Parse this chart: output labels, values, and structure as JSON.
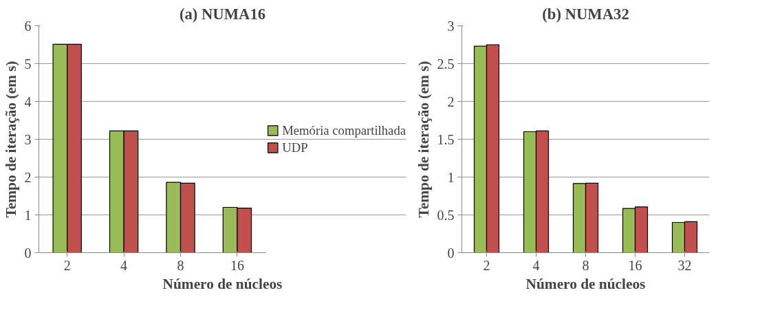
{
  "chart_data": [
    {
      "type": "bar",
      "title": "(a) NUMA16",
      "xlabel": "Número de núcleos",
      "ylabel": "Tempo de iteração (em s)",
      "categories": [
        "2",
        "4",
        "8",
        "16"
      ],
      "ylim": [
        0,
        6
      ],
      "yticks": [
        0,
        1,
        2,
        3,
        4,
        5,
        6
      ],
      "grid": "y",
      "legend": "right",
      "series": [
        {
          "name": "Memória compartilhada",
          "color": "#9bbb59",
          "values": [
            5.51,
            3.22,
            1.86,
            1.2
          ]
        },
        {
          "name": "UDP",
          "color": "#c0504d",
          "values": [
            5.51,
            3.22,
            1.84,
            1.18
          ]
        }
      ]
    },
    {
      "type": "bar",
      "title": "(b) NUMA32",
      "xlabel": "Número de núcleos",
      "ylabel": "Tempo de iteração (em s)",
      "categories": [
        "2",
        "4",
        "8",
        "16",
        "32"
      ],
      "ylim": [
        0,
        3
      ],
      "yticks": [
        0,
        0.5,
        1,
        1.5,
        2,
        2.5,
        3
      ],
      "grid": "y",
      "series": [
        {
          "color": "#9bbb59",
          "values": [
            2.73,
            1.6,
            0.915,
            0.585,
            0.4
          ]
        },
        {
          "color": "#c0504d",
          "values": [
            2.75,
            1.61,
            0.92,
            0.605,
            0.41
          ]
        }
      ]
    }
  ]
}
